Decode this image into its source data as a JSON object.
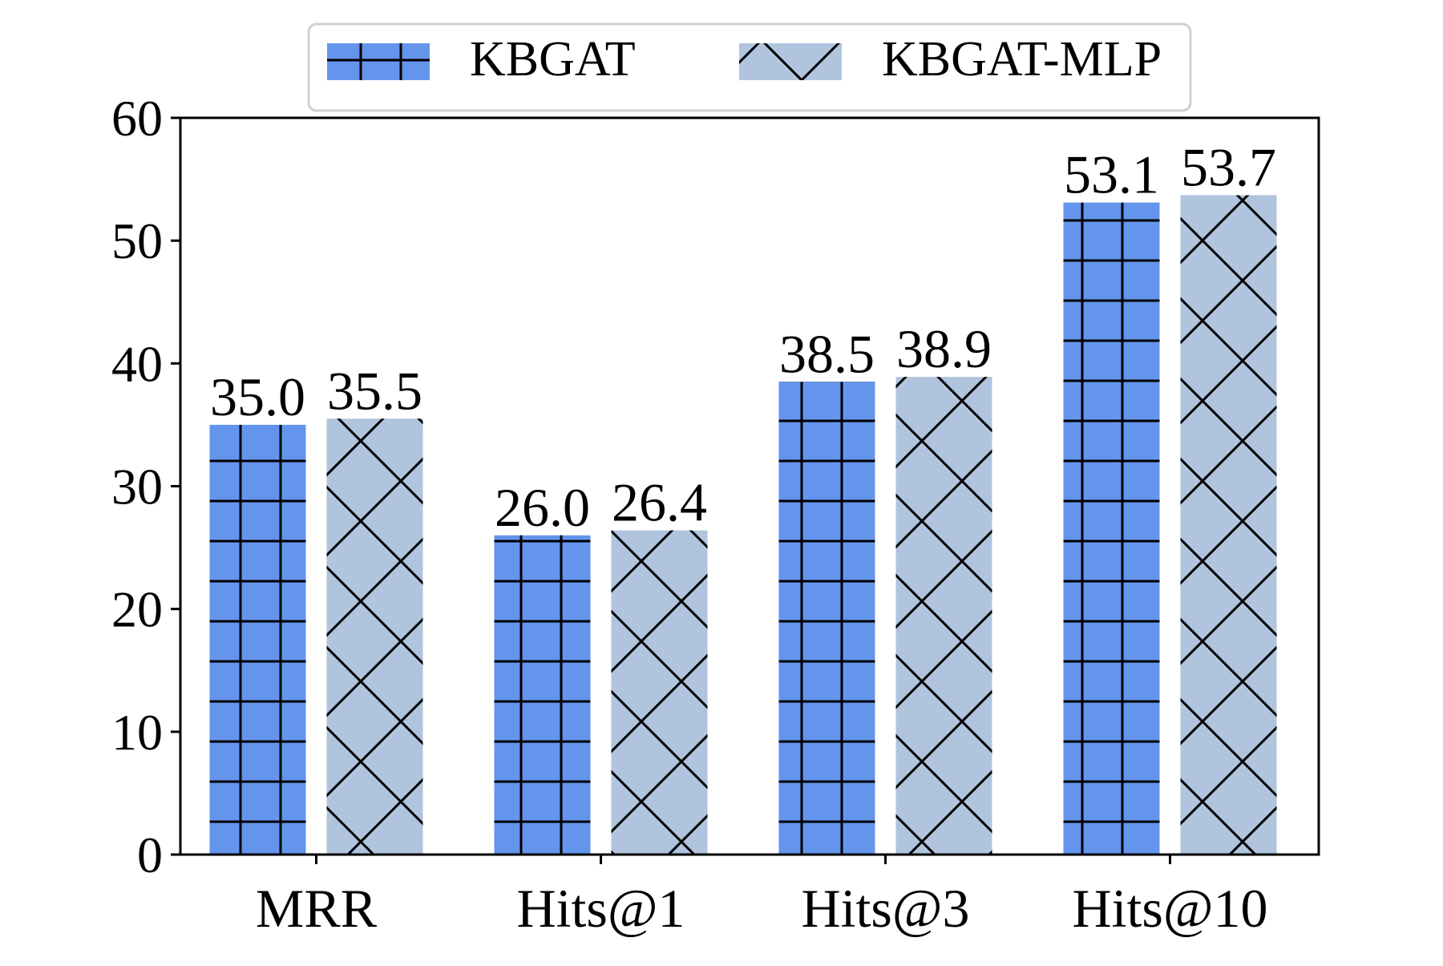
{
  "chart_data": {
    "type": "bar",
    "title": "",
    "xlabel": "",
    "ylabel": "",
    "categories": [
      "MRR",
      "Hits@1",
      "Hits@3",
      "Hits@10"
    ],
    "series": [
      {
        "name": "KBGAT",
        "values": [
          35.0,
          26.0,
          38.5,
          53.1
        ],
        "color": "#6495ED",
        "pattern": "grid"
      },
      {
        "name": "KBGAT-MLP",
        "values": [
          35.5,
          26.4,
          38.9,
          53.7
        ],
        "color": "#B0C4DE",
        "pattern": "diagonal-cross"
      }
    ],
    "data_labels": [
      [
        "35.0",
        "26.0",
        "38.5",
        "53.1"
      ],
      [
        "35.5",
        "26.4",
        "38.9",
        "53.7"
      ]
    ],
    "ylim": [
      0,
      60
    ],
    "yticks": [
      0,
      10,
      20,
      30,
      40,
      50,
      60
    ],
    "grid": false,
    "legend_position": "top-center"
  }
}
